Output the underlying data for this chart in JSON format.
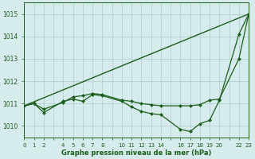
{
  "background_color": "#d6ecec",
  "grid_color": "#b0cccc",
  "line_color": "#1a5c1a",
  "xlabel": "Graphe pression niveau de la mer (hPa)",
  "xlabel_color": "#1a5c1a",
  "ylim": [
    1009.5,
    1015.5
  ],
  "xlim": [
    0,
    23
  ],
  "yticks": [
    1010,
    1011,
    1012,
    1013,
    1014,
    1015
  ],
  "xtick_labels": [
    "0",
    "1",
    "2",
    "",
    "4",
    "5",
    "6",
    "7",
    "8",
    "",
    "10",
    "11",
    "12",
    "13",
    "14",
    "",
    "16",
    "17",
    "18",
    "19",
    "20",
    "",
    "22",
    "23"
  ],
  "series": [
    {
      "x": [
        0,
        23
      ],
      "y": [
        1010.9,
        1015.0
      ],
      "marker": null,
      "markersize": 0,
      "linewidth": 1.0
    },
    {
      "x": [
        0,
        1,
        2,
        4,
        5,
        6,
        7,
        8,
        10,
        11,
        12,
        13,
        14,
        16,
        17,
        18,
        19,
        20,
        22,
        23
      ],
      "y": [
        1010.9,
        1011.0,
        1010.75,
        1011.05,
        1011.3,
        1011.35,
        1011.45,
        1011.4,
        1011.15,
        1011.1,
        1011.0,
        1010.95,
        1010.9,
        1010.9,
        1010.9,
        1010.95,
        1011.15,
        1011.2,
        1013.0,
        1015.0
      ],
      "marker": "D",
      "markersize": 2.0,
      "linewidth": 0.9
    },
    {
      "x": [
        0,
        1,
        2,
        4,
        5,
        6,
        7,
        8,
        10,
        11,
        12,
        13,
        14,
        16,
        17,
        18,
        19,
        20,
        22,
        23
      ],
      "y": [
        1010.9,
        1011.0,
        1010.6,
        1011.1,
        1011.2,
        1011.1,
        1011.4,
        1011.35,
        1011.1,
        1010.85,
        1010.65,
        1010.55,
        1010.5,
        1009.85,
        1009.75,
        1010.1,
        1010.25,
        1011.15,
        1014.1,
        1015.0
      ],
      "marker": "D",
      "markersize": 2.0,
      "linewidth": 0.9
    }
  ]
}
